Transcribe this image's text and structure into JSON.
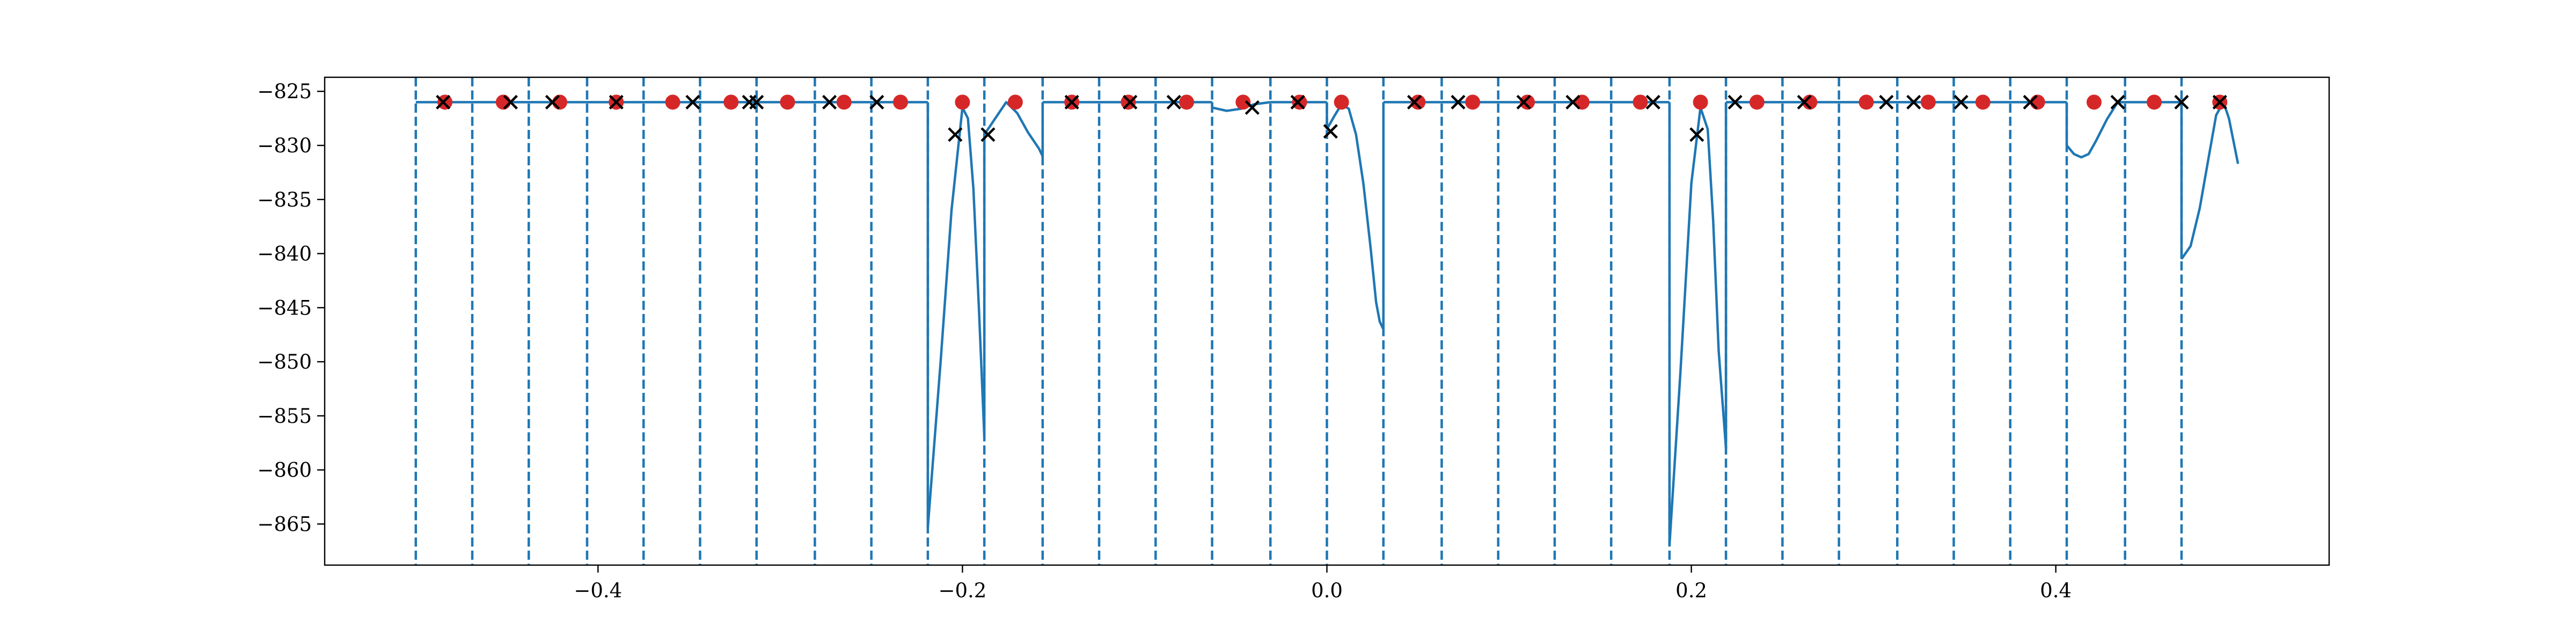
{
  "chart_data": {
    "type": "line",
    "title": "",
    "xlabel": "",
    "ylabel": "",
    "xlim": [
      -0.55,
      0.55
    ],
    "ylim": [
      -868.8,
      -823.7
    ],
    "x_ticks": [
      -0.4,
      -0.2,
      0.0,
      0.2,
      0.4
    ],
    "x_tick_labels": [
      "−0.4",
      "−0.2",
      "0.0",
      "0.2",
      "0.4"
    ],
    "y_ticks": [
      -825,
      -830,
      -835,
      -840,
      -845,
      -850,
      -855,
      -860,
      -865
    ],
    "y_tick_labels": [
      "−825",
      "−830",
      "−835",
      "−840",
      "−845",
      "−850",
      "−855",
      "−860",
      "−865"
    ],
    "grid": false,
    "legend": "none",
    "colors": {
      "line": "#1f77b4",
      "vlines": "#1f77b4",
      "dots": "#d62728",
      "crosses": "#000000"
    },
    "boundaries": [
      -0.5,
      -0.469,
      -0.438,
      -0.406,
      -0.375,
      -0.344,
      -0.313,
      -0.281,
      -0.25,
      -0.219,
      -0.188,
      -0.156,
      -0.125,
      -0.094,
      -0.063,
      -0.031,
      0.0,
      0.031,
      0.063,
      0.094,
      0.125,
      0.156,
      0.188,
      0.219,
      0.25,
      0.281,
      0.313,
      0.344,
      0.375,
      0.406,
      0.438,
      0.469
    ],
    "line_segments": [
      [
        [
          -0.5,
          -826.0
        ],
        [
          -0.219,
          -826.0
        ]
      ],
      [
        [
          -0.219,
          -865.3
        ],
        [
          -0.212,
          -850.0
        ],
        [
          -0.206,
          -836.0
        ],
        [
          -0.2,
          -826.5
        ],
        [
          -0.197,
          -827.5
        ],
        [
          -0.194,
          -834.0
        ],
        [
          -0.191,
          -845.0
        ],
        [
          -0.188,
          -857.0
        ]
      ],
      [
        [
          -0.188,
          -829.0
        ],
        [
          -0.182,
          -827.5
        ],
        [
          -0.176,
          -826.0
        ],
        [
          -0.17,
          -827.0
        ],
        [
          -0.164,
          -828.8
        ],
        [
          -0.158,
          -830.3
        ],
        [
          -0.156,
          -831.0
        ]
      ],
      [
        [
          -0.156,
          -826.0
        ],
        [
          -0.063,
          -826.0
        ]
      ],
      [
        [
          -0.063,
          -826.5
        ],
        [
          -0.055,
          -826.8
        ],
        [
          -0.047,
          -826.6
        ],
        [
          -0.04,
          -826.2
        ],
        [
          -0.031,
          -826.0
        ]
      ],
      [
        [
          -0.031,
          -826.0
        ],
        [
          0.0,
          -826.0
        ]
      ],
      [
        [
          0.0,
          -828.5
        ],
        [
          0.004,
          -827.3
        ],
        [
          0.008,
          -826.2
        ],
        [
          0.012,
          -826.6
        ],
        [
          0.016,
          -829.0
        ],
        [
          0.02,
          -833.5
        ],
        [
          0.024,
          -839.5
        ],
        [
          0.027,
          -844.5
        ],
        [
          0.029,
          -846.3
        ],
        [
          0.031,
          -847.0
        ]
      ],
      [
        [
          0.031,
          -826.0
        ],
        [
          0.188,
          -826.0
        ]
      ],
      [
        [
          0.188,
          -867.0
        ],
        [
          0.194,
          -851.0
        ],
        [
          0.2,
          -833.5
        ],
        [
          0.205,
          -826.5
        ],
        [
          0.209,
          -828.5
        ],
        [
          0.212,
          -837.0
        ],
        [
          0.215,
          -849.0
        ],
        [
          0.219,
          -858.0
        ]
      ],
      [
        [
          0.219,
          -826.0
        ],
        [
          0.406,
          -826.0
        ]
      ],
      [
        [
          0.406,
          -830.0
        ],
        [
          0.41,
          -830.8
        ],
        [
          0.414,
          -831.1
        ],
        [
          0.418,
          -830.8
        ],
        [
          0.422,
          -829.6
        ],
        [
          0.428,
          -827.6
        ],
        [
          0.434,
          -826.0
        ],
        [
          0.438,
          -826.0
        ]
      ],
      [
        [
          0.438,
          -826.0
        ],
        [
          0.469,
          -826.0
        ]
      ],
      [
        [
          0.469,
          -840.5
        ],
        [
          0.474,
          -839.3
        ],
        [
          0.479,
          -835.8
        ],
        [
          0.484,
          -831.0
        ],
        [
          0.488,
          -827.2
        ],
        [
          0.492,
          -826.0
        ],
        [
          0.495,
          -827.5
        ],
        [
          0.5,
          -831.7
        ]
      ]
    ],
    "dots": [
      [
        -0.484,
        -826.0
      ],
      [
        -0.452,
        -826.0
      ],
      [
        -0.421,
        -826.0
      ],
      [
        -0.39,
        -826.0
      ],
      [
        -0.359,
        -826.0
      ],
      [
        -0.327,
        -826.0
      ],
      [
        -0.296,
        -826.0
      ],
      [
        -0.265,
        -826.0
      ],
      [
        -0.234,
        -826.0
      ],
      [
        -0.2,
        -826.0
      ],
      [
        -0.171,
        -826.0
      ],
      [
        -0.14,
        -826.0
      ],
      [
        -0.109,
        -826.0
      ],
      [
        -0.077,
        -826.0
      ],
      [
        -0.046,
        -826.0
      ],
      [
        -0.015,
        -826.0
      ],
      [
        0.008,
        -826.0
      ],
      [
        0.05,
        -826.0
      ],
      [
        0.08,
        -826.0
      ],
      [
        0.11,
        -826.0
      ],
      [
        0.14,
        -826.0
      ],
      [
        0.172,
        -826.0
      ],
      [
        0.205,
        -826.0
      ],
      [
        0.236,
        -826.0
      ],
      [
        0.265,
        -826.0
      ],
      [
        0.296,
        -826.0
      ],
      [
        0.33,
        -826.0
      ],
      [
        0.36,
        -826.0
      ],
      [
        0.39,
        -826.0
      ],
      [
        0.421,
        -826.0
      ],
      [
        0.454,
        -826.0
      ],
      [
        0.49,
        -826.0
      ]
    ],
    "crosses": [
      [
        -0.485,
        -826.0
      ],
      [
        -0.448,
        -826.0
      ],
      [
        -0.425,
        -826.0
      ],
      [
        -0.39,
        -826.0
      ],
      [
        -0.348,
        -826.0
      ],
      [
        -0.317,
        -826.0
      ],
      [
        -0.313,
        -826.0
      ],
      [
        -0.273,
        -826.0
      ],
      [
        -0.247,
        -826.0
      ],
      [
        -0.204,
        -829.0
      ],
      [
        -0.186,
        -829.0
      ],
      [
        -0.14,
        -826.0
      ],
      [
        -0.108,
        -826.0
      ],
      [
        -0.084,
        -826.0
      ],
      [
        -0.041,
        -826.5
      ],
      [
        -0.016,
        -826.0
      ],
      [
        0.002,
        -828.7
      ],
      [
        0.048,
        -826.0
      ],
      [
        0.072,
        -826.0
      ],
      [
        0.108,
        -826.0
      ],
      [
        0.135,
        -826.0
      ],
      [
        0.179,
        -826.0
      ],
      [
        0.203,
        -829.0
      ],
      [
        0.224,
        -826.0
      ],
      [
        0.262,
        -826.0
      ],
      [
        0.307,
        -826.0
      ],
      [
        0.322,
        -826.0
      ],
      [
        0.348,
        -826.0
      ],
      [
        0.386,
        -826.0
      ],
      [
        0.434,
        -826.0
      ],
      [
        0.469,
        -826.0
      ],
      [
        0.49,
        -826.0
      ]
    ]
  }
}
